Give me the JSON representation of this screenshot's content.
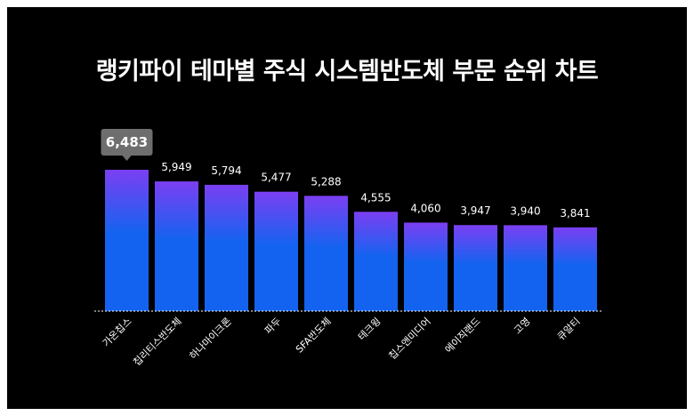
{
  "title": "랭키파이 테마별 주식 시스템반도체 부문 순위 차트",
  "colors": {
    "background": "#000000",
    "bar_top": "#7b3ff2",
    "bar_bottom": "#1463f0",
    "callout": "#6e6e6e",
    "text": "#ffffff"
  },
  "chart_data": {
    "type": "bar",
    "title": "랭키파이 테마별 주식 시스템반도체 부문 순위 차트",
    "categories": [
      "가온칩스",
      "칩리티스반도체",
      "하나마이크론",
      "파두",
      "SFA반도체",
      "테크윙",
      "칩스앤미디어",
      "에이직랜드",
      "고영",
      "큐알티"
    ],
    "values": [
      6483,
      5949,
      5794,
      5477,
      5288,
      4555,
      4060,
      3947,
      3940,
      3841
    ],
    "value_labels": [
      "6,483",
      "5,949",
      "5,794",
      "5,477",
      "5,288",
      "4,555",
      "4,060",
      "3,947",
      "3,940",
      "3,841"
    ],
    "highlight_index": 0,
    "ylim": [
      0,
      6483
    ],
    "grid": false,
    "legend": "none",
    "xlabel": "",
    "ylabel": ""
  }
}
